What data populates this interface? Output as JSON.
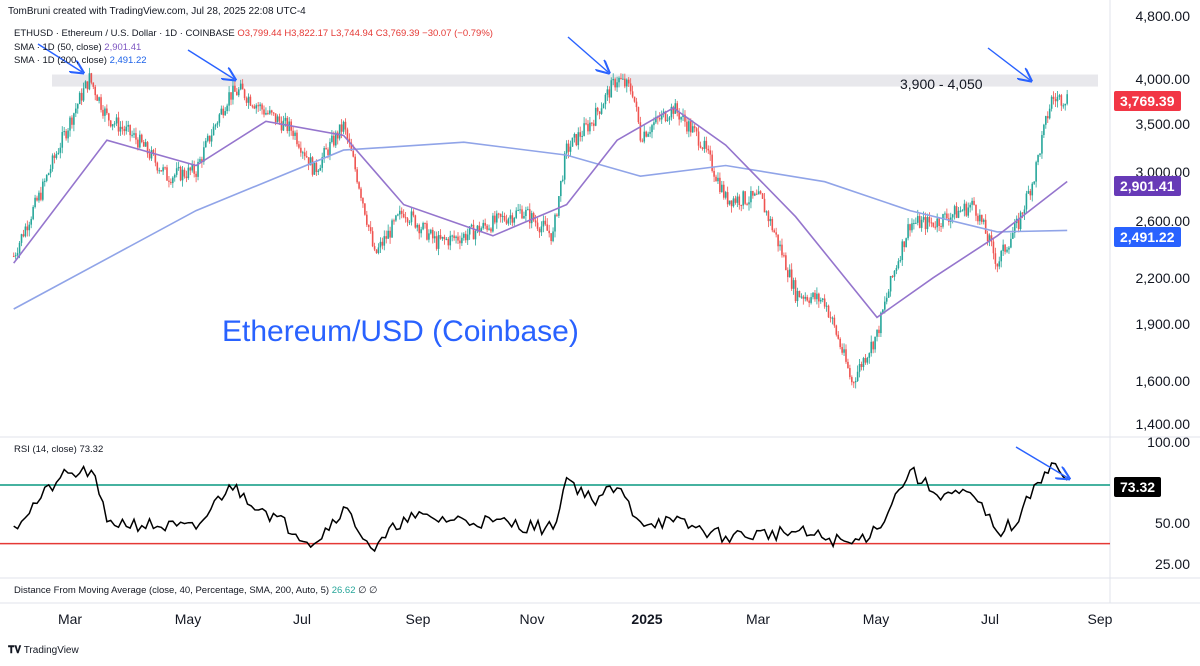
{
  "header": {
    "credit": "TomBruni created with TradingView.com, Jul 28, 2025 22:08 UTC-4",
    "symbol_line": "ETHUSD · Ethereum / U.S. Dollar · 1D · COINBASE",
    "ohlc": "O3,799.44 H3,822.17 L3,744.94 C3,769.39 −30.07 (−0.79%)",
    "sma50_label": "SMA · 1D (50, close)",
    "sma50_value": "2,901.41",
    "sma200_label": "SMA · 1D (200, close)",
    "sma200_value": "2,491.22"
  },
  "annotations": {
    "title": "Ethereum/USD (Coinbase)",
    "resistance_zone": "3,900 - 4,050"
  },
  "price_axis": {
    "ticks": [
      "4,800.00",
      "4,000.00",
      "3,500.00",
      "3,000.00",
      "2,600.00",
      "2,200.00",
      "1,900.00",
      "1,600.00",
      "1,400.00"
    ],
    "last_price_tag": "3,769.39",
    "sma50_tag": "2,901.41",
    "sma200_tag": "2,491.22"
  },
  "rsi_pane": {
    "label": "RSI (14, close)",
    "value": "73.32",
    "ticks": [
      "100.00",
      "50.00",
      "25.00"
    ],
    "tag": "73.32"
  },
  "dist_pane": {
    "label": "Distance From Moving Average (close, 40, Percentage, SMA, 200, Auto, 5)",
    "value": "26.62",
    "extras": "∅ ∅"
  },
  "time_axis": {
    "labels": [
      "Mar",
      "May",
      "Jul",
      "Sep",
      "Nov",
      "2025",
      "Mar",
      "May",
      "Jul",
      "Sep"
    ]
  },
  "footer": {
    "brand": "TradingView"
  },
  "colors": {
    "up": "#26a69a",
    "down": "#ef5350",
    "sma50": "#9575cd",
    "sma200": "#90a4e8",
    "rsi_line": "#000000",
    "rsi_upper": "#089981",
    "rsi_lower": "#e53935",
    "last_tag": "#f23645",
    "sma50_tag": "#673ab7",
    "sma200_tag": "#2962ff",
    "rsi_tag": "#000000",
    "zone": "#e8e8ec",
    "arrow": "#2962ff"
  },
  "chart_data": {
    "type": "candlestick",
    "symbol": "ETHUSD",
    "exchange": "COINBASE",
    "interval": "1D",
    "y_scale": "log",
    "ylim": [
      1350,
      4800
    ],
    "resistance_zone": [
      3900,
      4050
    ],
    "last": {
      "open": 3799.44,
      "high": 3822.17,
      "low": 3744.94,
      "close": 3769.39,
      "change": -30.07,
      "change_pct": -0.79
    },
    "close_path": {
      "x": [
        "2024-02-01",
        "2024-02-15",
        "2024-02-28",
        "2024-03-11",
        "2024-03-20",
        "2024-04-05",
        "2024-04-20",
        "2024-05-05",
        "2024-05-22",
        "2024-05-28",
        "2024-06-10",
        "2024-06-24",
        "2024-07-05",
        "2024-07-20",
        "2024-08-05",
        "2024-08-20",
        "2024-09-06",
        "2024-09-20",
        "2024-10-05",
        "2024-10-20",
        "2024-11-05",
        "2024-11-12",
        "2024-11-25",
        "2024-12-08",
        "2024-12-16",
        "2024-12-20",
        "2025-01-06",
        "2025-01-20",
        "2025-02-02",
        "2025-02-20",
        "2025-03-10",
        "2025-03-25",
        "2025-04-08",
        "2025-04-21",
        "2025-05-08",
        "2025-05-20",
        "2025-06-10",
        "2025-06-22",
        "2025-07-03",
        "2025-07-11",
        "2025-07-20",
        "2025-07-28"
      ],
      "y": [
        2300,
        2800,
        3400,
        4000,
        3550,
        3300,
        2950,
        3000,
        3800,
        3850,
        3600,
        3400,
        3000,
        3450,
        2300,
        2650,
        2400,
        2450,
        2550,
        2650,
        2450,
        3200,
        3500,
        4000,
        3850,
        3350,
        3650,
        3300,
        2750,
        2750,
        2050,
        2000,
        1550,
        1800,
        2550,
        2550,
        2700,
        2250,
        2550,
        2950,
        3750,
        3769.39
      ]
    },
    "sma50": {
      "x": [
        "2024-02-01",
        "2024-03-20",
        "2024-05-05",
        "2024-06-10",
        "2024-07-20",
        "2024-08-20",
        "2024-10-05",
        "2024-11-12",
        "2024-12-08",
        "2025-01-06",
        "2025-02-02",
        "2025-03-10",
        "2025-04-21",
        "2025-05-20",
        "2025-06-22",
        "2025-07-28"
      ],
      "y": [
        2250,
        3300,
        3050,
        3500,
        3350,
        2700,
        2450,
        2700,
        3300,
        3650,
        3250,
        2600,
        1900,
        2150,
        2450,
        2901.41
      ]
    },
    "sma200": {
      "x": [
        "2024-02-01",
        "2024-05-05",
        "2024-07-20",
        "2024-09-20",
        "2024-11-12",
        "2024-12-20",
        "2025-02-02",
        "2025-03-25",
        "2025-05-08",
        "2025-06-22",
        "2025-07-28"
      ],
      "y": [
        1950,
        2650,
        3200,
        3280,
        3150,
        2950,
        3050,
        2900,
        2650,
        2480,
        2491.22
      ]
    },
    "rsi": {
      "ylim": [
        10,
        100
      ],
      "levels": [
        70,
        30
      ],
      "x": [
        "2024-02-01",
        "2024-02-25",
        "2024-03-12",
        "2024-03-20",
        "2024-05-05",
        "2024-05-22",
        "2024-06-10",
        "2024-07-05",
        "2024-07-20",
        "2024-08-05",
        "2024-08-20",
        "2024-10-05",
        "2024-11-05",
        "2024-11-12",
        "2024-11-25",
        "2024-12-08",
        "2024-12-20",
        "2025-01-06",
        "2025-02-02",
        "2025-03-10",
        "2025-04-08",
        "2025-04-21",
        "2025-05-08",
        "2025-05-20",
        "2025-06-10",
        "2025-06-22",
        "2025-07-03",
        "2025-07-11",
        "2025-07-20",
        "2025-07-28"
      ],
      "y": [
        42,
        75,
        80,
        45,
        40,
        70,
        52,
        30,
        55,
        25,
        48,
        45,
        40,
        75,
        60,
        68,
        45,
        45,
        35,
        38,
        30,
        40,
        80,
        65,
        62,
        38,
        45,
        70,
        85,
        73.32
      ]
    },
    "title": "Ethereum/USD (Coinbase)",
    "x_ticks": [
      "Mar",
      "May",
      "Jul",
      "Sep",
      "Nov",
      "2025",
      "Mar",
      "May",
      "Jul",
      "Sep"
    ]
  }
}
